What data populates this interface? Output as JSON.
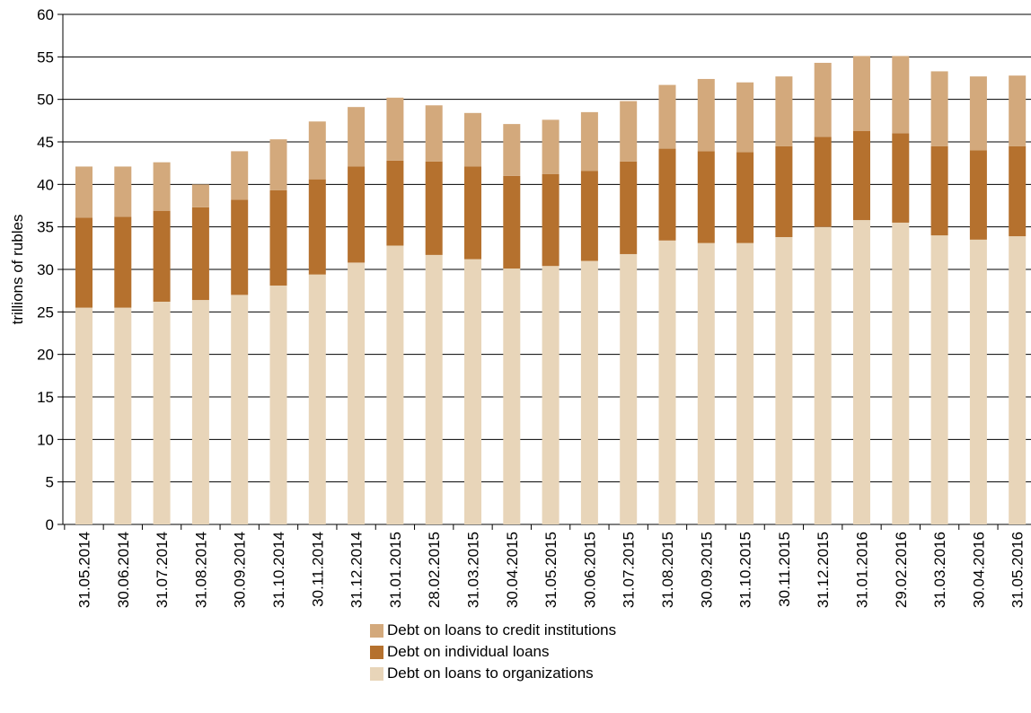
{
  "chart_data": {
    "type": "bar",
    "stacked": true,
    "title": "",
    "xlabel": "",
    "ylabel": "trillions of rubles",
    "ylim": [
      0,
      60
    ],
    "yticks": [
      0,
      5,
      10,
      15,
      20,
      25,
      30,
      35,
      40,
      45,
      50,
      55,
      60
    ],
    "grid": "horizontal",
    "legend_position": "bottom",
    "categories": [
      "31.05.2014",
      "30.06.2014",
      "31.07.2014",
      "31.08.2014",
      "30.09.2014",
      "31.10.2014",
      "30.11.2014",
      "31.12.2014",
      "31.01.2015",
      "28.02.2015",
      "31.03.2015",
      "30.04.2015",
      "31.05.2015",
      "30.06.2015",
      "31.07.2015",
      "31.08.2015",
      "30.09.2015",
      "31.10.2015",
      "30.11.2015",
      "31.12.2015",
      "31.01.2016",
      "29.02.2016",
      "31.03.2016",
      "30.04.2016",
      "31.05.2016"
    ],
    "series": [
      {
        "name": "Debt on  loans to organizations",
        "color": "#e8d5b9",
        "values": [
          25.5,
          25.5,
          26.2,
          26.4,
          27.0,
          28.1,
          29.4,
          30.8,
          32.8,
          31.7,
          31.2,
          30.1,
          30.4,
          31.0,
          31.8,
          33.4,
          33.1,
          33.1,
          33.8,
          35.0,
          35.8,
          35.5,
          34.0,
          33.5,
          33.9
        ]
      },
      {
        "name": "Debt on individual loans",
        "color": "#b5712e",
        "values": [
          10.6,
          10.7,
          10.7,
          10.9,
          11.2,
          11.2,
          11.2,
          11.3,
          10.0,
          11.0,
          10.9,
          10.9,
          10.8,
          10.6,
          10.9,
          10.8,
          10.8,
          10.7,
          10.7,
          10.6,
          10.5,
          10.5,
          10.5,
          10.5,
          10.6
        ]
      },
      {
        "name": "Debt on loans to credit institutions",
        "color": "#d3a97c",
        "values": [
          6.0,
          5.9,
          5.7,
          2.7,
          5.7,
          6.0,
          6.8,
          7.0,
          7.4,
          6.6,
          6.3,
          6.1,
          6.4,
          6.9,
          7.1,
          7.5,
          8.5,
          8.2,
          8.2,
          8.7,
          8.8,
          9.1,
          8.8,
          8.7,
          8.3
        ]
      }
    ],
    "legend": [
      {
        "label": "Debt on loans to credit institutions",
        "color": "#d3a97c"
      },
      {
        "label": "Debt on individual loans",
        "color": "#b5712e"
      },
      {
        "label": "Debt on  loans to organizations",
        "color": "#e8d5b9"
      }
    ]
  }
}
